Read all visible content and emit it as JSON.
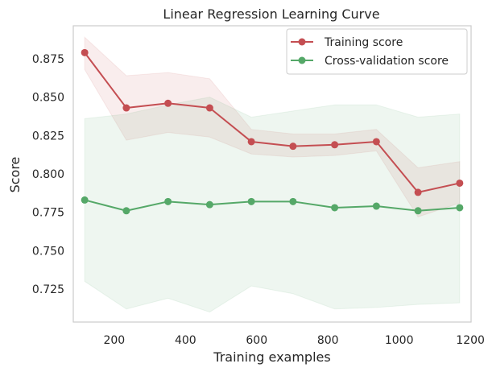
{
  "chart_data": {
    "type": "line",
    "title": "Linear Regression Learning Curve",
    "xlabel": "Training examples",
    "ylabel": "Score",
    "xlim": [
      85,
      1202
    ],
    "ylim": [
      0.7035,
      0.8965
    ],
    "xticks": [
      200,
      400,
      600,
      800,
      1000,
      1200
    ],
    "yticks": [
      0.725,
      0.75,
      0.775,
      0.8,
      0.825,
      0.85,
      0.875
    ],
    "ytick_labels": [
      "0.725",
      "0.750",
      "0.775",
      "0.800",
      "0.825",
      "0.850",
      "0.875"
    ],
    "grid": false,
    "legend_position": "top-right",
    "x": [
      117,
      234,
      351,
      468,
      585,
      702,
      819,
      936,
      1053,
      1170
    ],
    "series": [
      {
        "name": "Training score",
        "color": "#c44e52",
        "values": [
          0.879,
          0.843,
          0.846,
          0.843,
          0.821,
          0.818,
          0.819,
          0.821,
          0.788,
          0.794
        ],
        "band_upper": [
          0.889,
          0.864,
          0.866,
          0.862,
          0.829,
          0.826,
          0.826,
          0.829,
          0.804,
          0.808
        ],
        "band_lower": [
          0.868,
          0.822,
          0.827,
          0.824,
          0.813,
          0.811,
          0.812,
          0.815,
          0.772,
          0.781
        ]
      },
      {
        "name": "Cross-validation score",
        "color": "#55a868",
        "values": [
          0.783,
          0.776,
          0.782,
          0.78,
          0.782,
          0.782,
          0.778,
          0.779,
          0.776,
          0.778
        ],
        "band_upper": [
          0.836,
          0.839,
          0.845,
          0.85,
          0.837,
          0.841,
          0.845,
          0.845,
          0.837,
          0.839
        ],
        "band_lower": [
          0.73,
          0.712,
          0.719,
          0.71,
          0.727,
          0.722,
          0.712,
          0.713,
          0.715,
          0.716
        ]
      }
    ]
  }
}
